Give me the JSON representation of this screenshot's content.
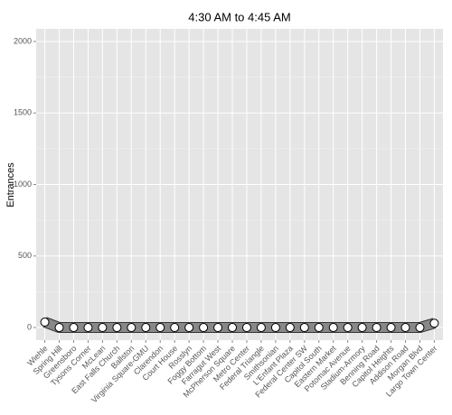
{
  "chart_data": {
    "type": "line",
    "title": "4:30 AM to 4:45 AM",
    "y_label": "Entrances",
    "categories": [
      "Wiehle",
      "Spring Hill",
      "Greensboro",
      "Tysons Corner",
      "McLean",
      "East Falls Church",
      "Ballston",
      "Virginia Square-GMU",
      "Clarendon",
      "Court House",
      "Rosslyn",
      "Foggy Bottom",
      "Farragut West",
      "McPherson Square",
      "Metro Center",
      "Federal Triangle",
      "Smithsonian",
      "L'Enfant Plaza",
      "Federal Center SW",
      "Capitol South",
      "Eastern Market",
      "Potomac Avenue",
      "Stadium-Armory",
      "Benning Road",
      "Capitol Heights",
      "Addison Road",
      "Morgan Blvd",
      "Largo Town Center"
    ],
    "values": [
      38,
      0,
      0,
      0,
      0,
      0,
      0,
      0,
      0,
      0,
      0,
      0,
      0,
      0,
      0,
      0,
      0,
      0,
      0,
      0,
      0,
      0,
      0,
      0,
      0,
      0,
      0,
      30
    ],
    "color": "#888888",
    "ylim": [
      -88,
      2088
    ],
    "yticks": [
      0,
      500,
      1000,
      1500,
      2000
    ],
    "grid": true
  }
}
